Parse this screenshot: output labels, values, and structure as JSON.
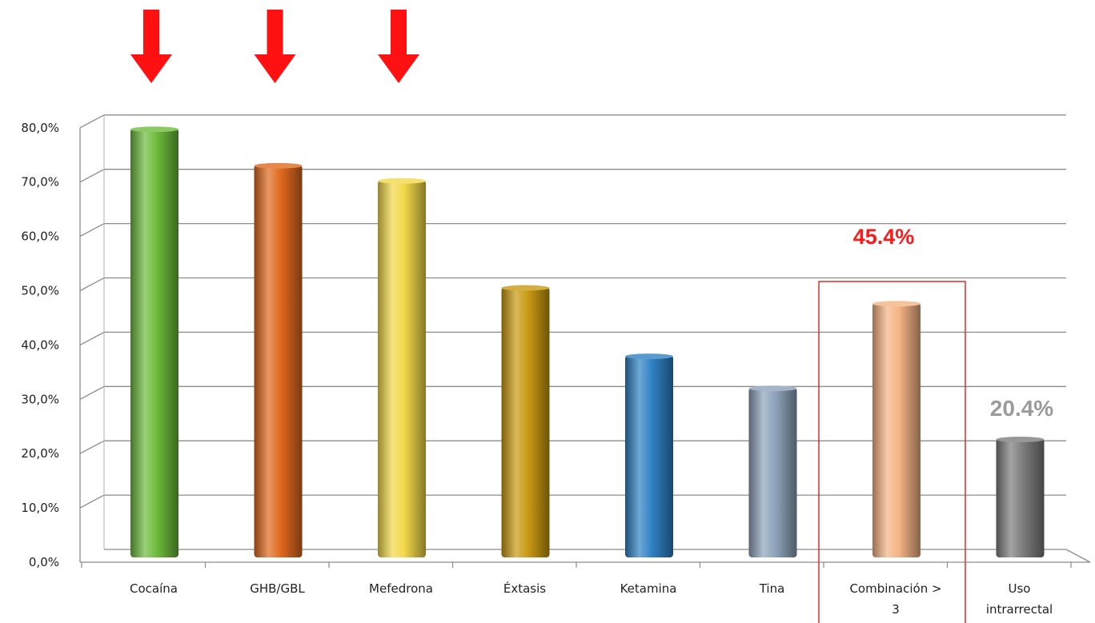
{
  "chart_data": {
    "type": "bar",
    "categories": [
      "Cocaína",
      "GHB/GBL",
      "Mefedrona",
      "Éxtasis",
      "Ketamina",
      "Tina",
      "Combinación > 3",
      "Uso intrarrectal"
    ],
    "category_lines": [
      [
        "Cocaína"
      ],
      [
        "GHB/GBL"
      ],
      [
        "Mefedrona"
      ],
      [
        "Éxtasis"
      ],
      [
        "Ketamina"
      ],
      [
        "Tina"
      ],
      [
        "Combinación >",
        "3"
      ],
      [
        "Uso",
        "intrarrectal"
      ]
    ],
    "values": [
      77.5,
      70.8,
      68.0,
      48.3,
      35.7,
      29.8,
      45.4,
      20.4
    ],
    "ylim": [
      0,
      80
    ],
    "yticks": [
      "0,0%",
      "10,0%",
      "20,0%",
      "30,0%",
      "40,0%",
      "50,0%",
      "60,0%",
      "70,0%",
      "80,0%"
    ],
    "grid": true,
    "bar_colors": [
      "#6dbb3c",
      "#e06a1e",
      "#f2d84a",
      "#c99a12",
      "#2f82c4",
      "#8ea3bb",
      "#f4b484",
      "#7d7d7d"
    ],
    "annotations": [
      {
        "text": "45.4%",
        "category": "Combinación > 3",
        "color": "#ff1a1a",
        "boxed": true
      },
      {
        "text": "20.4%",
        "category": "Uso intrarrectal",
        "color": "#9a9a9a",
        "boxed": false
      }
    ],
    "arrows": {
      "categories": [
        "Cocaína",
        "GHB/GBL",
        "Mefedrona"
      ],
      "color": "#ff1111",
      "icon": "down-arrow-icon"
    }
  }
}
